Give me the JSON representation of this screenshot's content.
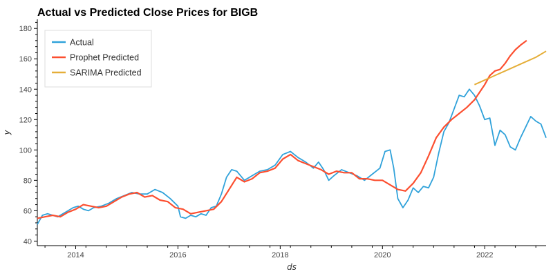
{
  "chart_data": {
    "type": "line",
    "title": "Actual vs Predicted Close Prices for BIGB",
    "xlabel": "ds",
    "ylabel": "y",
    "xlim": [
      2013.25,
      2023.2
    ],
    "ylim": [
      37,
      186
    ],
    "x_ticks": [
      2014,
      2016,
      2018,
      2020,
      2022
    ],
    "x_tick_labels": [
      "2014",
      "2016",
      "2018",
      "2020",
      "2022"
    ],
    "y_ticks": [
      40,
      60,
      80,
      100,
      120,
      140,
      160,
      180
    ],
    "y_tick_labels": [
      "40",
      "60",
      "80",
      "100",
      "120",
      "140",
      "160",
      "180"
    ],
    "grid": false,
    "legend_position": "top-left",
    "series": [
      {
        "name": "Actual",
        "color": "#30a2da",
        "x": [
          2013.25,
          2013.35,
          2013.45,
          2013.55,
          2013.65,
          2013.75,
          2013.85,
          2013.95,
          2014.05,
          2014.15,
          2014.25,
          2014.35,
          2014.5,
          2014.65,
          2014.8,
          2014.95,
          2015.1,
          2015.25,
          2015.4,
          2015.55,
          2015.7,
          2015.85,
          2016.0,
          2016.05,
          2016.15,
          2016.25,
          2016.35,
          2016.45,
          2016.55,
          2016.65,
          2016.75,
          2016.85,
          2016.95,
          2017.05,
          2017.15,
          2017.3,
          2017.45,
          2017.6,
          2017.75,
          2017.9,
          2018.05,
          2018.2,
          2018.35,
          2018.5,
          2018.65,
          2018.75,
          2018.85,
          2018.95,
          2019.05,
          2019.2,
          2019.35,
          2019.5,
          2019.65,
          2019.8,
          2019.95,
          2020.05,
          2020.15,
          2020.22,
          2020.3,
          2020.4,
          2020.5,
          2020.6,
          2020.7,
          2020.8,
          2020.9,
          2021.0,
          2021.1,
          2021.2,
          2021.3,
          2021.4,
          2021.5,
          2021.6,
          2021.7,
          2021.8,
          2021.9,
          2022.0,
          2022.1,
          2022.2,
          2022.3,
          2022.4,
          2022.5,
          2022.6,
          2022.7,
          2022.8,
          2022.9,
          2023.0,
          2023.1,
          2023.2
        ],
        "values": [
          51,
          57,
          58,
          57,
          56,
          58,
          60,
          62,
          63,
          61,
          60,
          62,
          63,
          65,
          68,
          70,
          72,
          71,
          71,
          74,
          72,
          68,
          63,
          56,
          55,
          57,
          56,
          58,
          57,
          62,
          63,
          71,
          82,
          87,
          86,
          80,
          83,
          86,
          87,
          90,
          97,
          99,
          95,
          92,
          88,
          92,
          87,
          80,
          83,
          87,
          85,
          83,
          80,
          84,
          88,
          99,
          100,
          88,
          68,
          62,
          67,
          75,
          72,
          76,
          75,
          82,
          98,
          112,
          118,
          127,
          136,
          135,
          140,
          136,
          129,
          120,
          121,
          103,
          113,
          110,
          102,
          100,
          108,
          115,
          122,
          119,
          117,
          108
        ]
      },
      {
        "name": "Prophet Predicted",
        "color": "#fc4f30",
        "x": [
          2013.25,
          2013.4,
          2013.55,
          2013.7,
          2013.85,
          2014.0,
          2014.15,
          2014.3,
          2014.45,
          2014.6,
          2014.75,
          2014.9,
          2015.05,
          2015.2,
          2015.35,
          2015.5,
          2015.65,
          2015.8,
          2015.95,
          2016.1,
          2016.25,
          2016.4,
          2016.55,
          2016.7,
          2016.85,
          2017.0,
          2017.15,
          2017.3,
          2017.45,
          2017.6,
          2017.75,
          2017.9,
          2018.05,
          2018.2,
          2018.35,
          2018.5,
          2018.65,
          2018.8,
          2018.95,
          2019.1,
          2019.25,
          2019.4,
          2019.55,
          2019.7,
          2019.85,
          2020.0,
          2020.15,
          2020.3,
          2020.45,
          2020.6,
          2020.75,
          2020.9,
          2021.05,
          2021.2,
          2021.35,
          2021.5,
          2021.65,
          2021.8,
          2021.9,
          2022.0,
          2022.1,
          2022.2,
          2022.3,
          2022.4,
          2022.5,
          2022.6,
          2022.7,
          2022.82
        ],
        "values": [
          55,
          56,
          57,
          56,
          59,
          61,
          64,
          63,
          62,
          63,
          66,
          69,
          71,
          72,
          69,
          70,
          67,
          66,
          62,
          61,
          58,
          59,
          60,
          61,
          66,
          74,
          82,
          79,
          81,
          85,
          86,
          88,
          94,
          97,
          93,
          91,
          89,
          87,
          84,
          86,
          85,
          85,
          81,
          81,
          80,
          80,
          77,
          74,
          73,
          78,
          85,
          96,
          108,
          115,
          120,
          124,
          128,
          133,
          138,
          143,
          149,
          152,
          153,
          157,
          162,
          166,
          169,
          172
        ]
      },
      {
        "name": "SARIMA Predicted",
        "color": "#e5ae38",
        "x": [
          2021.8,
          2022.0,
          2022.2,
          2022.4,
          2022.6,
          2022.8,
          2023.0,
          2023.2
        ],
        "values": [
          143,
          146,
          149,
          152,
          155,
          158,
          161,
          165
        ]
      }
    ]
  }
}
